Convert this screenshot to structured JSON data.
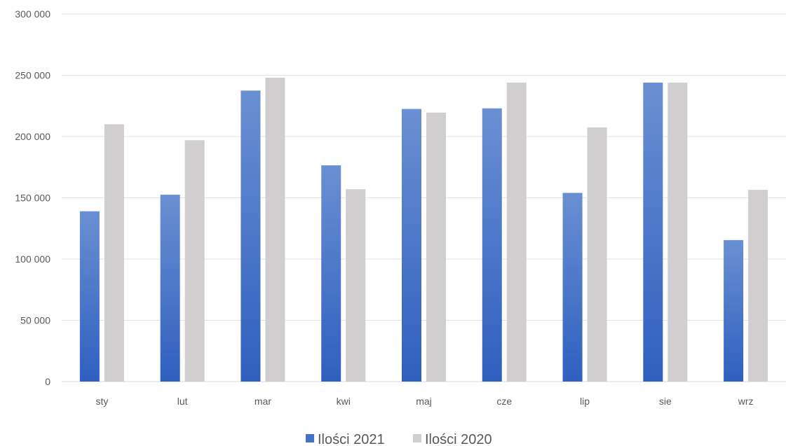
{
  "chart_data": {
    "type": "bar",
    "categories": [
      "sty",
      "lut",
      "mar",
      "kwi",
      "maj",
      "cze",
      "lip",
      "sie",
      "wrz"
    ],
    "series": [
      {
        "name": "Ilości 2021",
        "color": "#4472C4",
        "values": [
          139000,
          152500,
          237500,
          176500,
          222500,
          223000,
          154000,
          244000,
          115500
        ]
      },
      {
        "name": "Ilości 2020",
        "color": "#D0CECE",
        "values": [
          210000,
          197000,
          248000,
          157000,
          219500,
          244000,
          207500,
          244000,
          156500
        ]
      }
    ],
    "y_ticks": [
      0,
      50000,
      100000,
      150000,
      200000,
      250000,
      300000
    ],
    "y_tick_labels": [
      "0",
      "50 000",
      "100 000",
      "150 000",
      "200 000",
      "250 000",
      "300 000"
    ],
    "ylim": [
      0,
      300000
    ],
    "grid": true,
    "legend_position": "bottom",
    "title": "",
    "xlabel": "",
    "ylabel": ""
  }
}
